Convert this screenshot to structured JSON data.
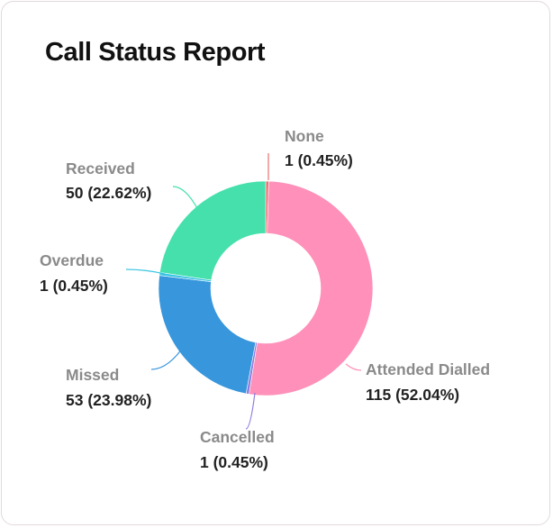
{
  "card": {
    "title": "Call Status Report"
  },
  "chart_data": {
    "type": "pie",
    "style": "donut",
    "title": "Call Status Report",
    "slices": [
      {
        "label": "None",
        "value": 1,
        "value_label": "1 (0.45%)",
        "color": "#e8716f"
      },
      {
        "label": "Attended Dialled",
        "value": 115,
        "value_label": "115 (52.04%)",
        "color": "#fe90b9"
      },
      {
        "label": "Cancelled",
        "value": 1,
        "value_label": "1 (0.45%)",
        "color": "#8e7ee0"
      },
      {
        "label": "Missed",
        "value": 53,
        "value_label": "53 (23.98%)",
        "color": "#3796dc"
      },
      {
        "label": "Overdue",
        "value": 1,
        "value_label": "1 (0.45%)",
        "color": "#38c4e2"
      },
      {
        "label": "Received",
        "value": 50,
        "value_label": "50 (22.62%)",
        "color": "#46e0ac"
      }
    ]
  }
}
